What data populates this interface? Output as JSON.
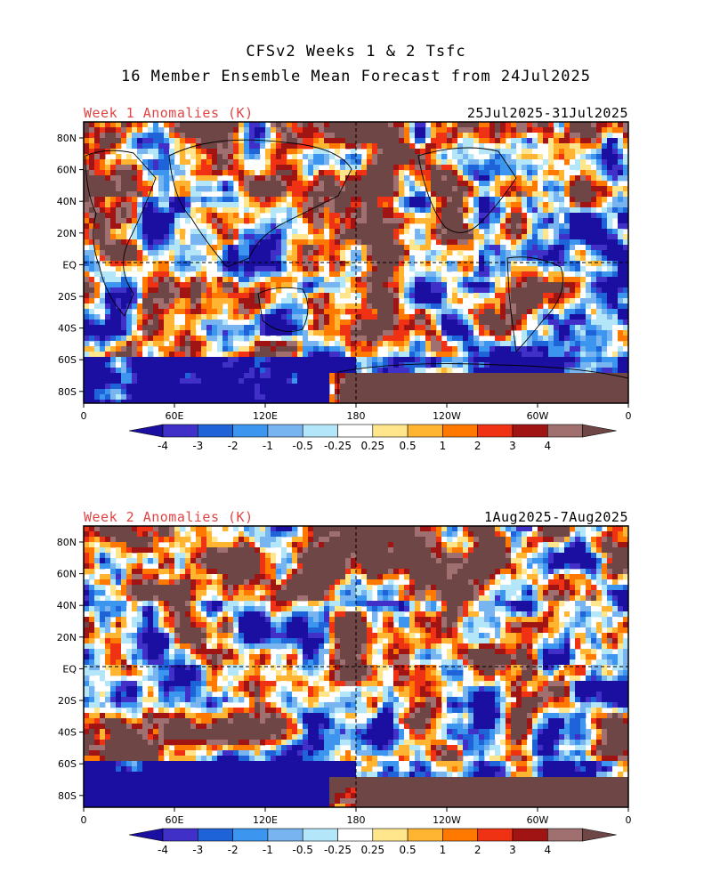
{
  "title": {
    "line1": "CFSv2 Weeks 1 & 2 Tsfc",
    "line2": "16 Member Ensemble Mean Forecast from 24Jul2025"
  },
  "panels": [
    {
      "label": "Week 1 Anomalies (K)",
      "dates": "25Jul2025-31Jul2025"
    },
    {
      "label": "Week 2 Anomalies (K)",
      "dates": "1Aug2025-7Aug2025"
    }
  ],
  "lat_ticks": [
    "80N",
    "60N",
    "40N",
    "20N",
    "EQ",
    "20S",
    "40S",
    "60S",
    "80S"
  ],
  "lon_ticks": [
    "0",
    "60E",
    "120E",
    "180",
    "120W",
    "60W",
    "0"
  ],
  "colorbar": {
    "labels": [
      "-4",
      "-3",
      "-2",
      "-1",
      "-0.5",
      "-0.25",
      "0.25",
      "0.5",
      "1",
      "2",
      "3",
      "4"
    ],
    "colors": [
      "#1a0fa0",
      "#4030c8",
      "#1e64d8",
      "#3c96f0",
      "#78b4f0",
      "#b4e6fa",
      "#ffffff",
      "#ffe68c",
      "#ffb432",
      "#ff7800",
      "#f03214",
      "#a01414",
      "#a07070",
      "#6e4646"
    ]
  },
  "colors": {
    "title": "#000000",
    "panel_label": "#e04545",
    "deep_cold": "#1a0fa0",
    "cold": "#3c96f0",
    "light_cold": "#b4e6fa",
    "neutral": "#ffffff",
    "light_warm": "#ffe68c",
    "warm": "#ffb432",
    "hot": "#f03214",
    "very_hot": "#a01414",
    "extreme_hot": "#6e4646"
  }
}
